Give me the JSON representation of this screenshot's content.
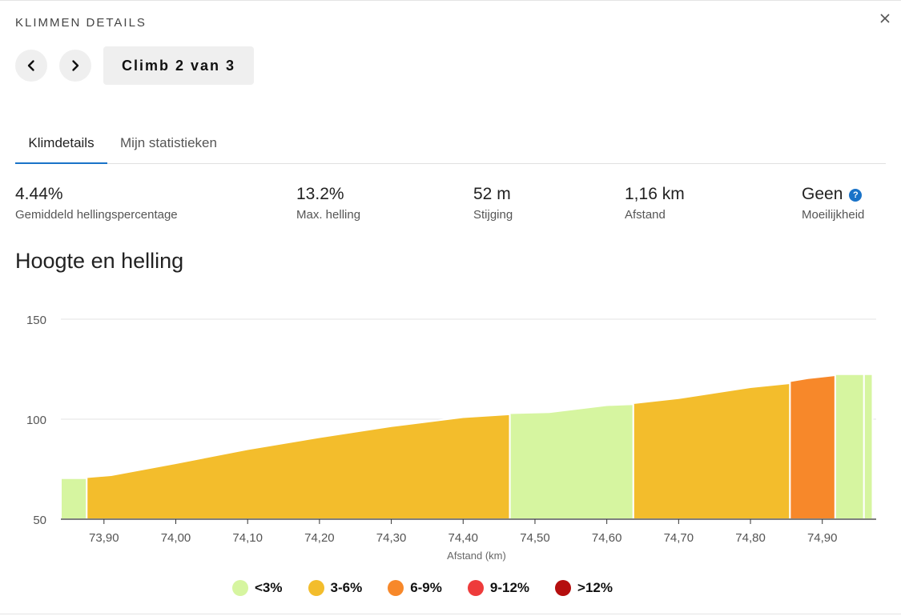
{
  "header": {
    "title": "KLIMMEN DETAILS",
    "climb_label": "Climb 2 van 3"
  },
  "tabs": [
    {
      "label": "Klimdetails",
      "active": true
    },
    {
      "label": "Mijn statistieken",
      "active": false
    }
  ],
  "stats": [
    {
      "value": "4.44%",
      "label": "Gemiddeld hellingspercentage"
    },
    {
      "value": "13.2%",
      "label": "Max. helling"
    },
    {
      "value": "52 m",
      "label": "Stijging"
    },
    {
      "value": "1,16 km",
      "label": "Afstand"
    },
    {
      "value": "Geen",
      "label": "Moeilijkheid",
      "help_icon": "?"
    }
  ],
  "section_title": "Hoogte en helling",
  "colors": {
    "lt3": "#d6f5a0",
    "3to6": "#f3bd2c",
    "6to9": "#f7882a",
    "9to12": "#ee3b3b",
    "gt12": "#b50e0e",
    "accent": "#1a73c8"
  },
  "chart_data": {
    "type": "area",
    "xlabel": "Afstand (km)",
    "ylabel": "",
    "xlim": [
      73.84,
      74.975
    ],
    "ylim": [
      50,
      150
    ],
    "y_ticks": [
      50,
      100,
      150
    ],
    "x_ticks": [
      73.9,
      74.0,
      74.1,
      74.2,
      74.3,
      74.4,
      74.5,
      74.6,
      74.7,
      74.8,
      74.9
    ],
    "x_tick_labels": [
      "73,90",
      "74,00",
      "74,10",
      "74,20",
      "74,30",
      "74,40",
      "74,50",
      "74,60",
      "74,70",
      "74,80",
      "74,90"
    ],
    "y_tick_labels": [
      "50",
      "100",
      "150"
    ],
    "grid": "horizontal",
    "segments": [
      {
        "grade": "<3%",
        "color": "#d6f5a0",
        "points": [
          [
            73.84,
            70.5
          ],
          [
            73.876,
            70.5
          ]
        ]
      },
      {
        "grade": "3-6%",
        "color": "#f3bd2c",
        "points": [
          [
            73.876,
            71
          ],
          [
            73.91,
            72
          ],
          [
            74.0,
            78
          ],
          [
            74.1,
            85
          ],
          [
            74.2,
            91
          ],
          [
            74.3,
            96.5
          ],
          [
            74.4,
            101
          ],
          [
            74.465,
            102.5
          ]
        ]
      },
      {
        "grade": "<3%",
        "color": "#d6f5a0",
        "points": [
          [
            74.465,
            103
          ],
          [
            74.52,
            103.5
          ],
          [
            74.6,
            107
          ],
          [
            74.637,
            107.5
          ]
        ]
      },
      {
        "grade": "3-6%",
        "color": "#f3bd2c",
        "points": [
          [
            74.637,
            108
          ],
          [
            74.7,
            110.5
          ],
          [
            74.8,
            116
          ],
          [
            74.855,
            118
          ]
        ]
      },
      {
        "grade": "6-9%",
        "color": "#f7882a",
        "points": [
          [
            74.855,
            119
          ],
          [
            74.88,
            120.5
          ],
          [
            74.918,
            122
          ]
        ]
      },
      {
        "grade": "<3%",
        "color": "#d6f5a0",
        "points": [
          [
            74.918,
            122.5
          ],
          [
            74.958,
            122.5
          ]
        ]
      },
      {
        "grade": "<3%",
        "color": "#d6f5a0",
        "points": [
          [
            74.958,
            122.5
          ],
          [
            74.97,
            122.5
          ]
        ]
      }
    ],
    "legend": [
      {
        "label": "<3%",
        "color": "#d6f5a0"
      },
      {
        "label": "3-6%",
        "color": "#f3bd2c"
      },
      {
        "label": "6-9%",
        "color": "#f7882a"
      },
      {
        "label": "9-12%",
        "color": "#ee3b3b"
      },
      {
        "label": ">12%",
        "color": "#b50e0e"
      }
    ],
    "legend_position": "bottom"
  }
}
